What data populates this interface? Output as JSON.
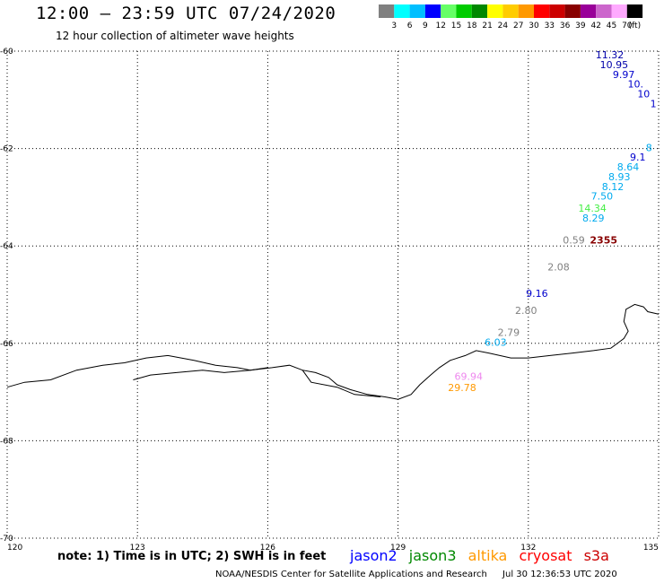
{
  "header": {
    "title": "12:00 – 23:59 UTC 07/24/2020",
    "subtitle": "12 hour collection of altimeter wave heights"
  },
  "color_scale": {
    "labels": [
      "3",
      "6",
      "9",
      "12",
      "15",
      "18",
      "21",
      "24",
      "27",
      "30",
      "33",
      "36",
      "39",
      "42",
      "45",
      "70"
    ],
    "unit": "(ft)",
    "colors": [
      "#808080",
      "#00ffff",
      "#00bfff",
      "#0000ff",
      "#66ff66",
      "#00cc00",
      "#008800",
      "#ffff00",
      "#ffcc00",
      "#ff9900",
      "#ff0000",
      "#cc0000",
      "#880000",
      "#990099",
      "#cc66cc",
      "#ffaaff",
      "#000000"
    ]
  },
  "axes": {
    "lon_labels": [
      "120",
      "123",
      "126",
      "129",
      "132",
      "135"
    ],
    "lat_labels": [
      "-60",
      "-62",
      "-64",
      "-66",
      "-68",
      "-70"
    ],
    "lon_values": [
      120,
      123,
      126,
      129,
      132,
      135
    ],
    "lat_values": [
      -60,
      -62,
      -64,
      -66,
      -68,
      -70
    ],
    "lon_range": [
      120,
      135
    ],
    "lat_range": [
      -70,
      -60
    ],
    "grid": "dotted"
  },
  "observations": [
    {
      "text": "11.32",
      "lon": 134.2,
      "lat": -60.15,
      "color": "#0000aa"
    },
    {
      "text": "10.95",
      "lon": 134.3,
      "lat": -60.35,
      "color": "#0000aa"
    },
    {
      "text": "9.97",
      "lon": 134.45,
      "lat": -60.55,
      "color": "#0000cc"
    },
    {
      "text": "10.",
      "lon": 134.65,
      "lat": -60.75,
      "color": "#0000cc"
    },
    {
      "text": "10",
      "lon": 134.8,
      "lat": -60.95,
      "color": "#0000cc"
    },
    {
      "text": "1",
      "lon": 134.95,
      "lat": -61.15,
      "color": "#0000cc"
    },
    {
      "text": "8",
      "lon": 134.85,
      "lat": -62.05,
      "color": "#00aaee"
    },
    {
      "text": "9.1",
      "lon": 134.7,
      "lat": -62.25,
      "color": "#0000cc"
    },
    {
      "text": "8.64",
      "lon": 134.55,
      "lat": -62.45,
      "color": "#00aaee"
    },
    {
      "text": "8.93",
      "lon": 134.35,
      "lat": -62.65,
      "color": "#00aaee"
    },
    {
      "text": "8.12",
      "lon": 134.2,
      "lat": -62.85,
      "color": "#00aaee"
    },
    {
      "text": "7.50",
      "lon": 133.95,
      "lat": -63.05,
      "color": "#00aaee"
    },
    {
      "text": "14.34",
      "lon": 133.8,
      "lat": -63.3,
      "color": "#44ee44"
    },
    {
      "text": "8.29",
      "lon": 133.75,
      "lat": -63.5,
      "color": "#00aaee"
    },
    {
      "text": "0.59",
      "lon": 133.3,
      "lat": -63.95,
      "color": "#808080"
    },
    {
      "text": "2355",
      "lon": 134.05,
      "lat": -63.95,
      "color": "#880000"
    },
    {
      "text": "2.08",
      "lon": 132.95,
      "lat": -64.5,
      "color": "#808080"
    },
    {
      "text": "9.16",
      "lon": 132.45,
      "lat": -65.05,
      "color": "#0000cc"
    },
    {
      "text": "2.80",
      "lon": 132.2,
      "lat": -65.4,
      "color": "#808080"
    },
    {
      "text": "2.79",
      "lon": 131.8,
      "lat": -65.85,
      "color": "#808080"
    },
    {
      "text": "6.03",
      "lon": 131.5,
      "lat": -66.05,
      "color": "#00aaee"
    },
    {
      "text": "69.94",
      "lon": 130.95,
      "lat": -66.75,
      "color": "#ee88ee"
    },
    {
      "text": "29.78",
      "lon": 130.8,
      "lat": -66.98,
      "color": "#ff9900"
    }
  ],
  "coastline": [
    [
      120.0,
      -66.9
    ],
    [
      120.4,
      -66.8
    ],
    [
      121.0,
      -66.75
    ],
    [
      121.6,
      -66.55
    ],
    [
      122.2,
      -66.45
    ],
    [
      122.7,
      -66.4
    ],
    [
      123.2,
      -66.3
    ],
    [
      123.7,
      -66.25
    ],
    [
      124.3,
      -66.35
    ],
    [
      124.8,
      -66.45
    ],
    [
      125.3,
      -66.5
    ],
    [
      125.6,
      -66.55
    ],
    [
      126.1,
      -66.5
    ],
    [
      126.5,
      -66.45
    ],
    [
      126.8,
      -66.55
    ],
    [
      127.1,
      -66.6
    ],
    [
      127.4,
      -66.7
    ],
    [
      127.6,
      -66.85
    ],
    [
      127.9,
      -66.95
    ],
    [
      128.3,
      -67.05
    ],
    [
      128.7,
      -67.1
    ],
    [
      129.0,
      -67.15
    ],
    [
      129.3,
      -67.05
    ],
    [
      129.5,
      -66.85
    ],
    [
      129.75,
      -66.65
    ],
    [
      129.95,
      -66.5
    ],
    [
      130.2,
      -66.35
    ],
    [
      130.55,
      -66.25
    ],
    [
      130.8,
      -66.15
    ],
    [
      131.1,
      -66.2
    ],
    [
      131.6,
      -66.3
    ],
    [
      132.0,
      -66.3
    ],
    [
      132.5,
      -66.25
    ],
    [
      133.0,
      -66.2
    ],
    [
      133.5,
      -66.15
    ],
    [
      133.9,
      -66.1
    ],
    [
      134.2,
      -65.9
    ],
    [
      134.3,
      -65.75
    ],
    [
      134.2,
      -65.55
    ],
    [
      134.25,
      -65.3
    ],
    [
      134.45,
      -65.2
    ],
    [
      134.65,
      -65.25
    ],
    [
      134.75,
      -65.35
    ],
    [
      135.0,
      -65.4
    ]
  ],
  "coastline_inner": [
    [
      122.9,
      -66.75
    ],
    [
      123.3,
      -66.65
    ],
    [
      123.9,
      -66.6
    ],
    [
      124.5,
      -66.55
    ],
    [
      125.0,
      -66.6
    ],
    [
      125.6,
      -66.55
    ],
    [
      126.0,
      -66.5
    ]
  ],
  "coastline_island": [
    [
      126.8,
      -66.55
    ],
    [
      127.0,
      -66.8
    ],
    [
      127.6,
      -66.9
    ],
    [
      128.0,
      -67.05
    ],
    [
      128.6,
      -67.1
    ]
  ],
  "footer": {
    "note": "note: 1) Time is in UTC; 2) SWH is in feet",
    "credit": "NOAA/NESDIS Center for Satellite Applications and Research",
    "timestamp": "Jul 30 12:36:53 UTC 2020",
    "satellites": [
      {
        "name": "jason2",
        "color": "#0000ff"
      },
      {
        "name": "jason3",
        "color": "#008800"
      },
      {
        "name": "altika",
        "color": "#ff9900"
      },
      {
        "name": "cryosat",
        "color": "#ff0000"
      },
      {
        "name": "s3a",
        "color": "#cc0000"
      }
    ]
  }
}
